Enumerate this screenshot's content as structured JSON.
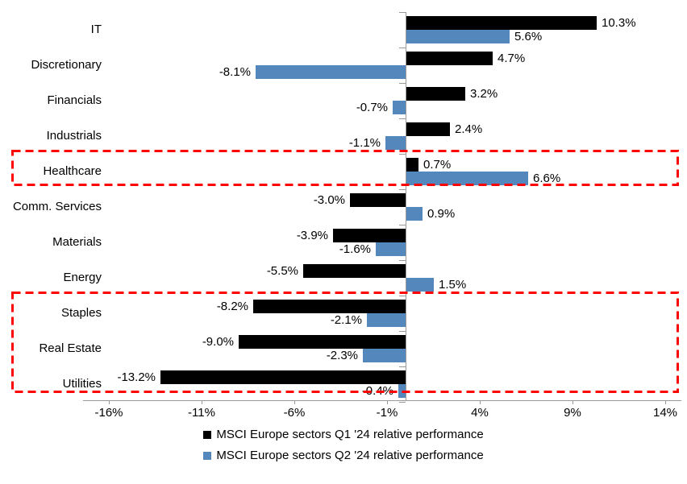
{
  "chart_data": {
    "type": "bar",
    "orientation": "horizontal",
    "title": "",
    "xlabel": "",
    "ylabel": "",
    "categories": [
      "IT",
      "Discretionary",
      "Financials",
      "Industrials",
      "Healthcare",
      "Comm. Services",
      "Materials",
      "Energy",
      "Staples",
      "Real Estate",
      "Utilities"
    ],
    "series": [
      {
        "name": "MSCI Europe sectors Q1 '24 relative performance",
        "color": "#000000",
        "values": [
          10.3,
          4.7,
          3.2,
          2.4,
          0.7,
          -3.0,
          -3.9,
          -5.5,
          -8.2,
          -9.0,
          -13.2
        ],
        "labels": [
          "10.3%",
          "4.7%",
          "3.2%",
          "2.4%",
          "0.7%",
          "-3.0%",
          "-3.9%",
          "-5.5%",
          "-8.2%",
          "-9.0%",
          "-13.2%"
        ]
      },
      {
        "name": "MSCI Europe sectors Q2 '24 relative performance",
        "color": "#5488BC",
        "values": [
          5.6,
          -8.1,
          -0.7,
          -1.1,
          6.6,
          0.9,
          -1.6,
          1.5,
          -2.1,
          -2.3,
          -0.4
        ],
        "labels": [
          "5.6%",
          "-8.1%",
          "-0.7%",
          "-1.1%",
          "6.6%",
          "0.9%",
          "-1.6%",
          "1.5%",
          "-2.1%",
          "-2.3%",
          "-0.4%"
        ]
      }
    ],
    "x_ticks": [
      {
        "label": "-16%",
        "value": -16
      },
      {
        "label": "-11%",
        "value": -11
      },
      {
        "label": "-6%",
        "value": -6
      },
      {
        "label": "-1%",
        "value": -1
      },
      {
        "label": "4%",
        "value": 4
      },
      {
        "label": "9%",
        "value": 9
      },
      {
        "label": "14%",
        "value": 14
      }
    ],
    "xlim": [
      -17.4,
      14.9
    ],
    "grid": false,
    "legend_position": "bottom-center",
    "highlight_color": "#FF0000",
    "highlights": [
      {
        "categories": [
          "Healthcare"
        ]
      },
      {
        "categories": [
          "Staples",
          "Real Estate",
          "Utilities"
        ]
      }
    ],
    "axis_color": "#999999"
  }
}
